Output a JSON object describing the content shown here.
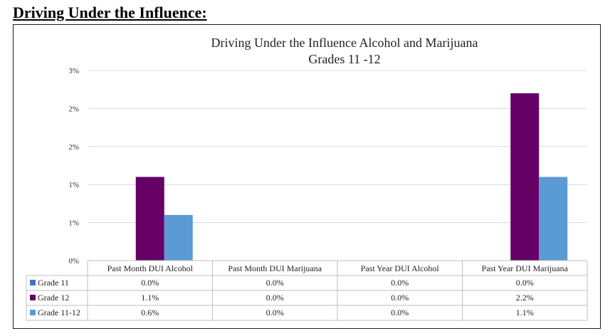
{
  "page": {
    "heading": "Driving Under the Influence:"
  },
  "chart_data": {
    "type": "bar",
    "title": [
      "Driving Under the Influence Alcohol and Marijuana",
      "Grades 11 -12"
    ],
    "xlabel": "",
    "ylabel": "",
    "categories": [
      "Past Month DUI Alcohol",
      "Past Month DUI Marijuana",
      "Past Year DUI Alcohol",
      "Past Year DUI Marijuana"
    ],
    "series": [
      {
        "name": "Grade 11",
        "color": "#4472C4",
        "values": [
          0.0,
          0.0,
          0.0,
          0.0
        ],
        "labels": [
          "0.0%",
          "0.0%",
          "0.0%",
          "0.0%"
        ]
      },
      {
        "name": "Grade 12",
        "color": "#660066",
        "values": [
          1.1,
          0.0,
          0.0,
          2.2
        ],
        "labels": [
          "1.1%",
          "0.0%",
          "0.0%",
          "2.2%"
        ]
      },
      {
        "name": "Grade 11-12",
        "color": "#5B9BD5",
        "values": [
          0.6,
          0.0,
          0.0,
          1.1
        ],
        "labels": [
          "0.6%",
          "0.0%",
          "0.0%",
          "1.1%"
        ]
      }
    ],
    "ylim": [
      0,
      2.5
    ],
    "yticks": [
      0,
      0.5,
      1.0,
      1.5,
      2.0,
      2.5
    ],
    "ytick_labels": [
      "0%",
      "1%",
      "1%",
      "2%",
      "2%",
      "3%"
    ],
    "grid": true,
    "legend": "data-table"
  }
}
